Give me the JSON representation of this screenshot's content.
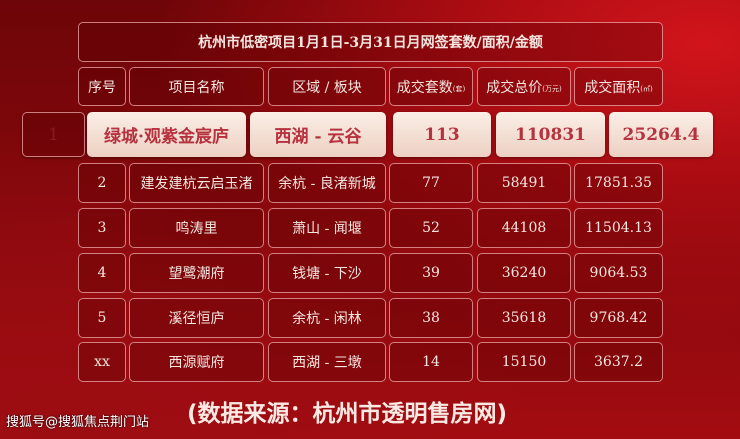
{
  "title": "杭州市低密项目1月1日-3月31日月网签套数/面积/金额",
  "headers": [
    {
      "label": "序号",
      "unit": ""
    },
    {
      "label": "项目名称",
      "unit": ""
    },
    {
      "label": "区域 / 板块",
      "unit": ""
    },
    {
      "label": "成交套数",
      "unit": "(套)"
    },
    {
      "label": "成交总价",
      "unit": "(万元)"
    },
    {
      "label": "成交面积",
      "unit": "(㎡)"
    }
  ],
  "highlight": [
    "1",
    "绿城·观紫金宸庐",
    "西湖 - 云谷",
    "113",
    "110831",
    "25264.4"
  ],
  "rows": [
    [
      "2",
      "建发建杭云启玉渚",
      "余杭 - 良渚新城",
      "77",
      "58491",
      "17851.35"
    ],
    [
      "3",
      "鸣涛里",
      "萧山 - 闻堰",
      "52",
      "44108",
      "11504.13"
    ],
    [
      "4",
      "望鹭潮府",
      "钱塘 - 下沙",
      "39",
      "36240",
      "9064.53"
    ],
    [
      "5",
      "溪径恒庐",
      "余杭 - 闲林",
      "38",
      "35618",
      "9768.42"
    ],
    [
      "xx",
      "西源赋府",
      "西湖 - 三墩",
      "14",
      "15150",
      "3637.2"
    ]
  ],
  "source": "(数据来源：杭州市透明售房网)",
  "watermark": "搜狐号@搜狐焦点荆门站",
  "colors": {
    "background": "#8b090d",
    "highlight_text": "#b5323e",
    "highlight_fill": "#f5e2d8"
  }
}
